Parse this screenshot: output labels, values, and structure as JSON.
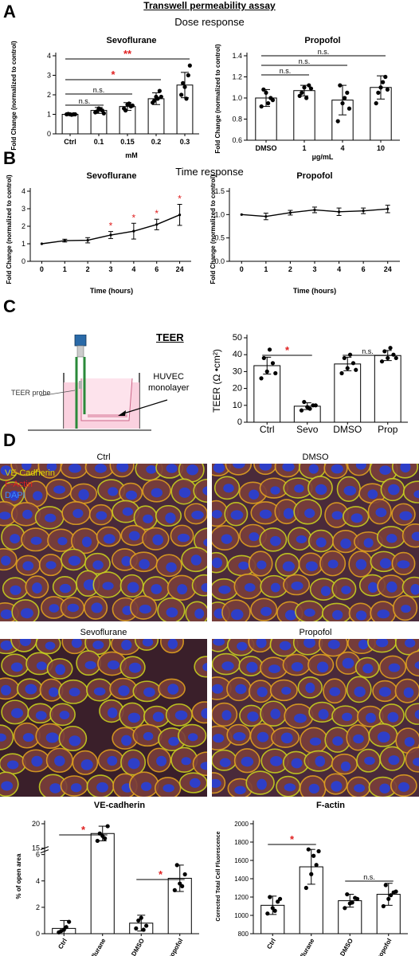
{
  "figure": {
    "main_title": "Transwell permeability assay",
    "dose_response_title": "Dose response",
    "time_response_title": "Time response",
    "panels": [
      "A",
      "B",
      "C",
      "D"
    ]
  },
  "colors": {
    "significance": "#e02020",
    "bar_fill": "#ffffff",
    "line": "#000000"
  },
  "chart_data": [
    {
      "id": "A_sevo",
      "type": "bar",
      "title": "Sevoflurane",
      "categories": [
        "Ctrl",
        "0.1",
        "0.15",
        "0.2",
        "0.3"
      ],
      "values": [
        1.0,
        1.2,
        1.4,
        1.8,
        2.5
      ],
      "errors": [
        0.05,
        0.15,
        0.2,
        0.3,
        0.65
      ],
      "points": [
        [
          1.0,
          1.0,
          1.0,
          1.02,
          0.98,
          1.0
        ],
        [
          1.1,
          1.3,
          1.2,
          1.15,
          1.25,
          1.05
        ],
        [
          1.3,
          1.5,
          1.4,
          1.2,
          1.55,
          1.45
        ],
        [
          1.6,
          1.9,
          2.2,
          1.7,
          1.8,
          1.9
        ],
        [
          2.0,
          2.4,
          3.0,
          2.6,
          1.8,
          3.5
        ]
      ],
      "xlabel": "mM",
      "ylabel": "Fold Change (normalized to control)",
      "ylim": [
        0,
        4
      ],
      "yticks": [
        "0",
        "1",
        "2",
        "3",
        "4"
      ],
      "sig": [
        "n.s.",
        "n.s.",
        "*",
        "**"
      ]
    },
    {
      "id": "A_prop",
      "type": "bar",
      "title": "Propofol",
      "categories": [
        "DMSO",
        "1",
        "4",
        "10"
      ],
      "values": [
        1.0,
        1.07,
        0.98,
        1.1
      ],
      "errors": [
        0.08,
        0.05,
        0.14,
        0.11
      ],
      "points": [
        [
          0.92,
          1.05,
          1.0,
          1.08,
          0.95,
          0.98
        ],
        [
          1.02,
          1.1,
          1.12,
          1.05,
          1.0,
          1.09
        ],
        [
          0.78,
          0.95,
          1.05,
          1.12,
          1.0,
          0.9
        ],
        [
          0.95,
          1.1,
          1.2,
          1.05,
          1.15,
          1.08
        ]
      ],
      "xlabel": "µg/mL",
      "ylabel": "Fold Change (normalized to control)",
      "ylim": [
        0.6,
        1.4
      ],
      "yticks": [
        "0.6",
        "0.8",
        "1.0",
        "1.2",
        "1.4"
      ],
      "sig": [
        "n.s.",
        "n.s.",
        "n.s."
      ]
    },
    {
      "id": "B_sevo",
      "type": "line",
      "title": "Sevoflurane",
      "categories": [
        "0",
        "1",
        "2",
        "3",
        "4",
        "6",
        "24"
      ],
      "values": [
        1.0,
        1.18,
        1.2,
        1.5,
        1.72,
        2.1,
        2.65
      ],
      "errors": [
        0,
        0.08,
        0.15,
        0.2,
        0.45,
        0.3,
        0.6
      ],
      "xlabel": "Time (hours)",
      "ylabel": "Fold Change (normalized to control)",
      "ylim": [
        0,
        4
      ],
      "yticks": [
        "0",
        "1",
        "2",
        "3",
        "4"
      ],
      "sig": [
        "",
        "",
        "",
        "*",
        "*",
        "*",
        "*"
      ]
    },
    {
      "id": "B_prop",
      "type": "line",
      "title": "Propofol",
      "categories": [
        "0",
        "1",
        "2",
        "3",
        "4",
        "6",
        "24"
      ],
      "values": [
        1.0,
        0.96,
        1.04,
        1.1,
        1.06,
        1.08,
        1.12
      ],
      "errors": [
        0,
        0.07,
        0.05,
        0.06,
        0.08,
        0.06,
        0.08
      ],
      "xlabel": "Time (hours)",
      "ylabel": "Fold Change (normalized to control)",
      "ylim": [
        0,
        1.5
      ],
      "yticks": [
        "0.0",
        "0.5",
        "1.0",
        "1.5"
      ],
      "sig": []
    },
    {
      "id": "C_teer",
      "type": "bar",
      "title": "TEER",
      "categories": [
        "Ctrl",
        "Sevo",
        "DMSO",
        "Prop"
      ],
      "values": [
        33.5,
        9.5,
        34.5,
        39.5
      ],
      "errors": [
        5,
        2,
        4,
        3
      ],
      "points": [
        [
          26,
          30,
          35,
          38,
          43,
          29
        ],
        [
          7,
          9,
          10,
          12,
          8,
          10
        ],
        [
          29,
          32,
          35,
          38,
          40,
          31
        ],
        [
          36,
          38,
          40,
          42,
          44,
          38
        ]
      ],
      "xlabel": "",
      "ylabel": "TEER (Ω •cm²)",
      "ylim": [
        0,
        50
      ],
      "yticks": [
        "0",
        "10",
        "20",
        "30",
        "40",
        "50"
      ],
      "sig": [
        "*",
        "n.s."
      ]
    },
    {
      "id": "D_ve",
      "type": "bar",
      "title": "VE-cadherin",
      "categories": [
        "Ctrl",
        "Sevoflurane",
        "DMSO",
        "Propofol"
      ],
      "values": [
        0.4,
        18,
        0.8,
        4.2
      ],
      "errors": [
        0.6,
        1.5,
        0.6,
        1.0
      ],
      "points": [
        [
          0.1,
          0.3,
          0.9,
          0.2,
          0.5
        ],
        [
          16.5,
          17.5,
          19.5,
          18,
          17
        ],
        [
          0.4,
          1.2,
          0.6,
          1.0,
          0.3
        ],
        [
          3.3,
          3.8,
          4.5,
          5.2,
          3.6
        ]
      ],
      "xlabel": "",
      "ylabel": "% of open area",
      "ylim": [
        0,
        20
      ],
      "yticks": [
        "0",
        "2",
        "4",
        "6",
        "15",
        "20"
      ],
      "axis_break": [
        6,
        15
      ],
      "sig": [
        "*",
        "*"
      ]
    },
    {
      "id": "D_factin",
      "type": "bar",
      "title": "F-actin",
      "categories": [
        "Ctrl",
        "Sevoflurane",
        "DMSO",
        "Propofol"
      ],
      "values": [
        1110,
        1530,
        1160,
        1230
      ],
      "errors": [
        100,
        190,
        70,
        120
      ],
      "points": [
        [
          1020,
          1080,
          1150,
          1200,
          1050,
          1180
        ],
        [
          1300,
          1450,
          1550,
          1720,
          1650,
          1700
        ],
        [
          1080,
          1130,
          1190,
          1230,
          1140,
          1180
        ],
        [
          1100,
          1180,
          1250,
          1330,
          1220,
          1260
        ]
      ],
      "xlabel": "",
      "ylabel": "Corrected Total Cell Fluorescence",
      "ylim": [
        800,
        2000
      ],
      "yticks": [
        "800",
        "1000",
        "1200",
        "1400",
        "1600",
        "1800",
        "2000"
      ],
      "sig": [
        "*",
        "n.s."
      ]
    }
  ],
  "teer_schematic": {
    "probe_label": "TEER probe",
    "monolayer_label": "HUVEC monolayer",
    "monolayer_label_line1": "HUVEC",
    "monolayer_label_line2": "monolayer"
  },
  "micrographs": {
    "legend": [
      "VE-Cadherin",
      "F-Actin",
      "DAPI"
    ],
    "legend_colors": [
      "#d8d800",
      "#e02020",
      "#3a8cff"
    ],
    "images": [
      {
        "label": "Ctrl"
      },
      {
        "label": "DMSO"
      },
      {
        "label": "Sevoflurane"
      },
      {
        "label": "Propofol"
      }
    ]
  }
}
